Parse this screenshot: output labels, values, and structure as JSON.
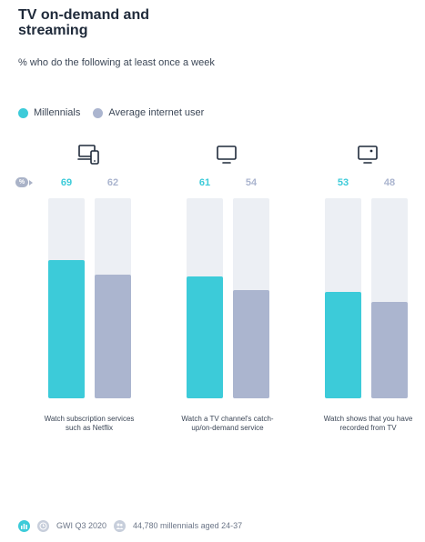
{
  "chart_data": {
    "type": "bar",
    "title": "TV on-demand and streaming",
    "subtitle": "% who do the following at least once a week",
    "unit_badge": "%",
    "categories": [
      "Watch subscription services such as Netflix",
      "Watch a TV channel's catch-up/on-demand service",
      "Watch shows that you have recorded from TV"
    ],
    "category_icons": [
      "devices-icon",
      "tv-icon",
      "recorder-icon"
    ],
    "series": [
      {
        "name": "Millennials",
        "color": "#3ccbd9",
        "values": [
          69,
          61,
          53
        ]
      },
      {
        "name": "Average internet user",
        "color": "#abb5cf",
        "values": [
          62,
          54,
          48
        ]
      }
    ],
    "ylim": [
      0,
      100
    ],
    "legend_position": "top-left",
    "grid": false
  },
  "footer": {
    "source": "GWI Q3 2020",
    "sample": "44,780 millennials aged 24-37"
  }
}
